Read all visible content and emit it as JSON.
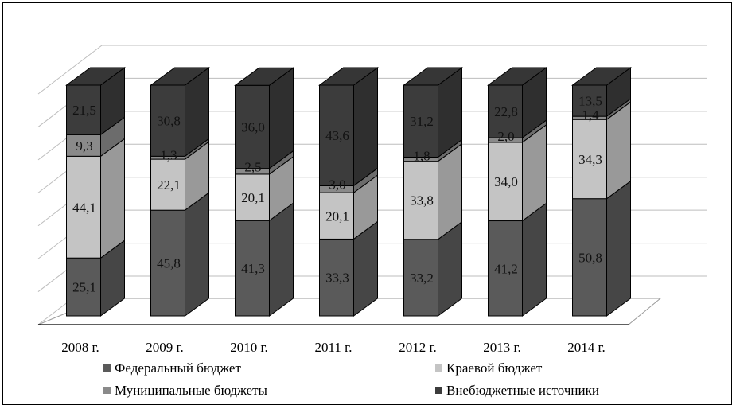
{
  "chart_data": {
    "type": "bar",
    "stacked": true,
    "three_d": true,
    "categories": [
      "2008 г.",
      "2009 г.",
      "2010 г.",
      "2011 г.",
      "2012 г.",
      "2013 г.",
      "2014 г."
    ],
    "series": [
      {
        "name": "Федеральный бюджет",
        "color": "#5a5a5a",
        "values": [
          25.1,
          45.8,
          41.3,
          33.3,
          33.2,
          41.2,
          50.8
        ],
        "labels": [
          "25,1",
          "45,8",
          "41,3",
          "33,3",
          "33,2",
          "41,2",
          "50,8"
        ]
      },
      {
        "name": "Краевой бюджет",
        "color": "#c4c4c4",
        "values": [
          44.1,
          22.1,
          20.1,
          20.1,
          33.8,
          34.0,
          34.3
        ],
        "labels": [
          "44,1",
          "22,1",
          "20,1",
          "20,1",
          "33,8",
          "34,0",
          "34,3"
        ]
      },
      {
        "name": "Муниципальные бюджеты",
        "color": "#8a8a8a",
        "values": [
          9.3,
          1.3,
          2.5,
          3.0,
          1.8,
          2.0,
          1.4
        ],
        "labels": [
          "9,3",
          "1,3",
          "2,5",
          "3,0",
          "1,8",
          "2,0",
          "1,4"
        ]
      },
      {
        "name": "Внебюджетные источники",
        "color": "#3c3c3c",
        "values": [
          21.5,
          30.8,
          36.0,
          43.6,
          31.2,
          22.8,
          13.5
        ],
        "labels": [
          "21,5",
          "30,8",
          "36,0",
          "43,6",
          "31,2",
          "22,8",
          "13,5"
        ]
      }
    ],
    "ylim": [
      0,
      100
    ],
    "grid": true,
    "legend": "bottom"
  }
}
